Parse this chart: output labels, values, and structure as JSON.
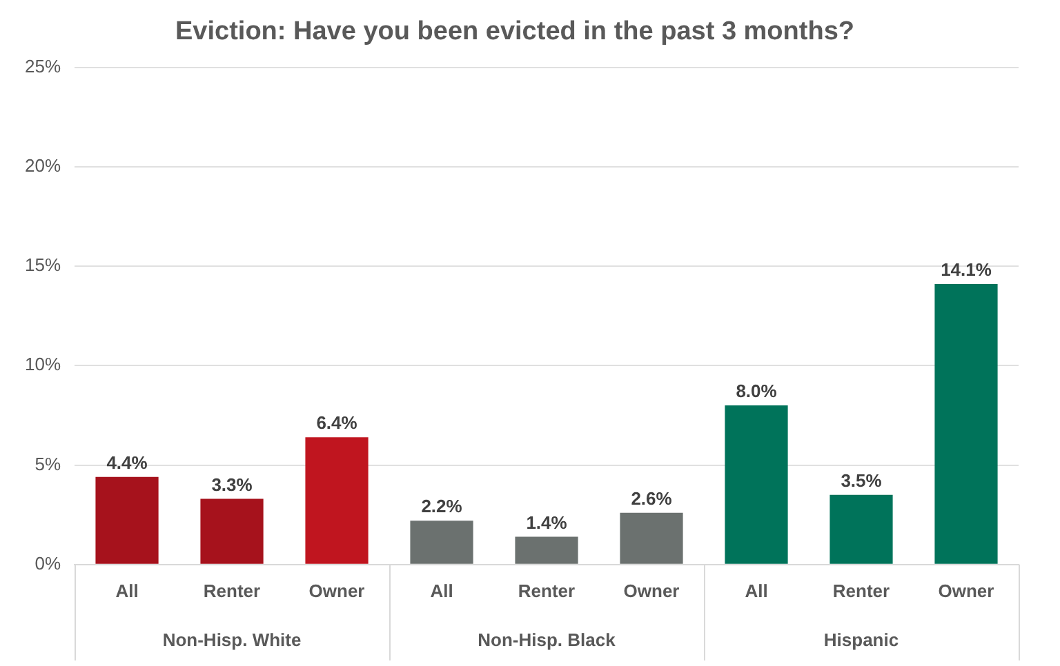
{
  "chart_data": {
    "type": "bar",
    "title": "Eviction: Have you been evicted in the past 3 months?",
    "categories": [
      "All",
      "Renter",
      "Owner",
      "All",
      "Renter",
      "Owner",
      "All",
      "Renter",
      "Owner"
    ],
    "values": [
      4.4,
      3.3,
      6.4,
      2.2,
      1.4,
      2.6,
      8.0,
      3.5,
      14.1
    ],
    "colors": [
      "#a6121c",
      "#a6121c",
      "#c0151f",
      "#6b716f",
      "#6b716f",
      "#6b716f",
      "#00735a",
      "#00735a",
      "#00735a"
    ],
    "value_labels": [
      "4.4%",
      "3.3%",
      "6.4%",
      "2.2%",
      "1.4%",
      "2.6%",
      "8.0%",
      "3.5%",
      "14.1%"
    ],
    "ylim": [
      0,
      25
    ],
    "yticks": [
      {
        "value": 0,
        "label": "0%"
      },
      {
        "value": 5,
        "label": "5%"
      },
      {
        "value": 10,
        "label": "10%"
      },
      {
        "value": 15,
        "label": "15%"
      },
      {
        "value": 20,
        "label": "20%"
      },
      {
        "value": 25,
        "label": "25%"
      }
    ],
    "grid": "y",
    "annotations": [
      "Non-Hisp. White",
      "Non-Hisp. Black",
      "Hispanic"
    ]
  }
}
